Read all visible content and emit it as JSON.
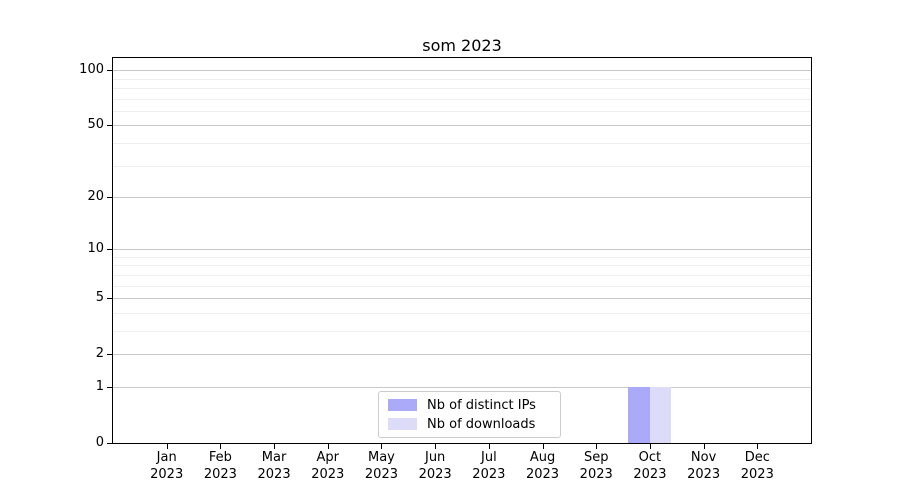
{
  "chart_data": {
    "type": "bar",
    "title": "som 2023",
    "categories": [
      "Jan",
      "Feb",
      "Mar",
      "Apr",
      "May",
      "Jun",
      "Jul",
      "Aug",
      "Sep",
      "Oct",
      "Nov",
      "Dec"
    ],
    "x_year_label": "2023",
    "series": [
      {
        "name": "Nb of distinct IPs",
        "color": "#aaaaf8",
        "values": [
          0,
          0,
          0,
          0,
          0,
          0,
          0,
          0,
          0,
          1,
          0,
          0
        ]
      },
      {
        "name": "Nb of downloads",
        "color": "#dcdcf9",
        "values": [
          0,
          0,
          0,
          0,
          0,
          0,
          0,
          0,
          0,
          1,
          0,
          0
        ]
      }
    ],
    "yaxis": {
      "scale": "log1p",
      "tick_values": [
        0,
        1,
        2,
        5,
        10,
        20,
        50,
        100
      ],
      "minor_gridline_values": [
        3,
        4,
        6,
        7,
        8,
        9,
        30,
        40,
        60,
        70,
        80,
        90
      ],
      "ylim": [
        0,
        116
      ]
    },
    "xlabel": "",
    "ylabel": "",
    "grid": true,
    "legend_position": "bottom-center",
    "colors": {
      "major_grid": "#c9c9c9",
      "minor_grid": "#efefef",
      "axis": "#000000",
      "background": "#ffffff"
    }
  }
}
